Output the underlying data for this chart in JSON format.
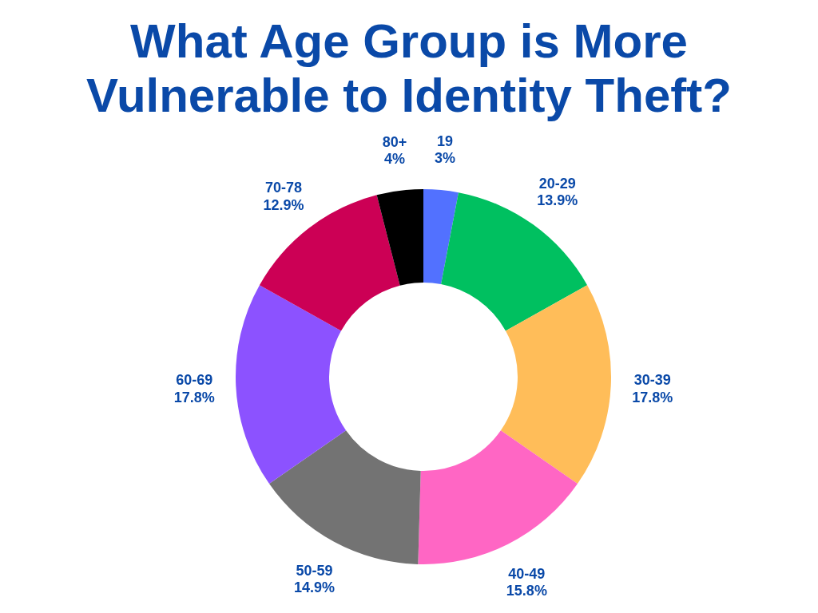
{
  "chart_data": {
    "type": "donut",
    "title": "What Age Group is More Vulnerable to Identity Theft?",
    "categories": [
      "19",
      "20-29",
      "30-39",
      "40-49",
      "50-59",
      "60-69",
      "70-78",
      "80+"
    ],
    "values": [
      3,
      13.9,
      17.8,
      15.8,
      14.9,
      17.8,
      12.9,
      4
    ],
    "value_labels": [
      "3%",
      "13.9%",
      "17.8%",
      "15.8%",
      "14.9%",
      "17.8%",
      "12.9%",
      "4%"
    ],
    "colors": [
      "#5271ff",
      "#00c060",
      "#ffbd59",
      "#ff66c4",
      "#737373",
      "#8c52ff",
      "#cc0055",
      "#000000"
    ],
    "legend": false
  }
}
